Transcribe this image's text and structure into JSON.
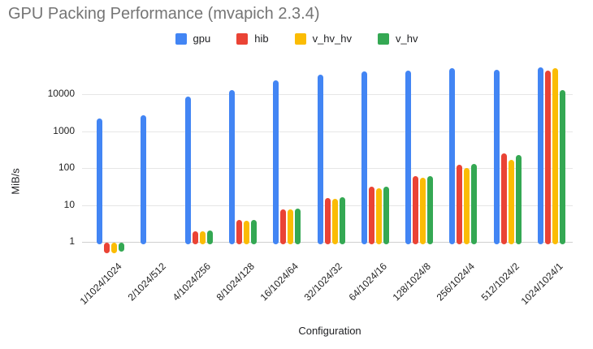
{
  "title": "GPU Packing Performance (mvapich 2.3.4)",
  "chart_data": {
    "type": "bar",
    "title": "GPU Packing Performance (mvapich 2.3.4)",
    "xlabel": "Configuration",
    "ylabel": "MiB/s",
    "y_scale": "log",
    "y_ticks": [
      1,
      10,
      100,
      1000,
      10000
    ],
    "ylim": [
      0.47,
      60000
    ],
    "grid": true,
    "legend_position": "top",
    "categories": [
      "1/1024/1024",
      "2/1024/512",
      "4/1024/256",
      "8/1024/128",
      "16/1024/64",
      "32/1024/32",
      "64/1024/16",
      "128/1024/8",
      "256/1024/4",
      "512/1024/2",
      "1024/1024/1"
    ],
    "series": [
      {
        "name": "gpu",
        "color": "#4285F4",
        "values": [
          2200,
          2700,
          8500,
          13000,
          24000,
          34000,
          41000,
          44000,
          50000,
          46000,
          53000
        ]
      },
      {
        "name": "hib",
        "color": "#EA4335",
        "values": [
          0.5,
          null,
          1.9,
          3.9,
          7.5,
          15.5,
          31,
          61,
          125,
          245,
          44000
        ]
      },
      {
        "name": "v_hv_hv",
        "color": "#FBBC04",
        "values": [
          0.5,
          null,
          1.9,
          3.8,
          7.4,
          14.5,
          29,
          56,
          100,
          165,
          51000
        ]
      },
      {
        "name": "v_hv",
        "color": "#34A853",
        "values": [
          0.55,
          null,
          2.0,
          3.9,
          7.9,
          16,
          31,
          61,
          128,
          225,
          13200
        ]
      }
    ]
  }
}
